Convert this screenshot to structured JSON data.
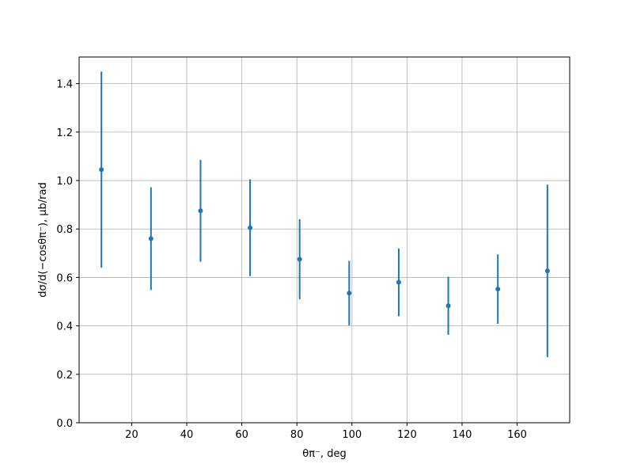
{
  "chart_data": {
    "type": "errorbar",
    "x_label": "θπ⁻, deg",
    "y_label": "dσ/d(−cosθπ⁻), μb/rad",
    "x": [
      9,
      27,
      45,
      63,
      81,
      99,
      117,
      135,
      153,
      171
    ],
    "values": [
      1.045,
      0.76,
      0.875,
      0.805,
      0.675,
      0.535,
      0.58,
      0.483,
      0.552,
      0.627
    ],
    "errors": [
      0.405,
      0.212,
      0.21,
      0.2,
      0.165,
      0.133,
      0.14,
      0.12,
      0.143,
      0.356
    ],
    "color": "#1f77b4",
    "xlim": [
      0.9,
      179.1
    ],
    "ylim": [
      0,
      1.51
    ],
    "xticks": [
      20,
      40,
      60,
      80,
      100,
      120,
      140,
      160
    ],
    "yticks": [
      {
        "value": 0,
        "label": "0.0"
      },
      {
        "value": 0.2,
        "label": "0.2"
      },
      {
        "value": 0.4,
        "label": "0.4"
      },
      {
        "value": 0.6,
        "label": "0.6"
      },
      {
        "value": 0.8,
        "label": "0.8"
      },
      {
        "value": 1.0,
        "label": "1.0"
      },
      {
        "value": 1.2,
        "label": "1.2"
      },
      {
        "value": 1.4,
        "label": "1.4"
      }
    ],
    "grid": true
  }
}
